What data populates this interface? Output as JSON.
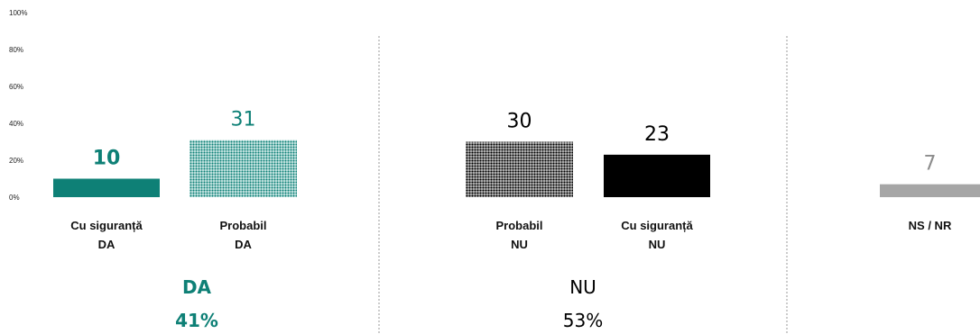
{
  "chart_data": {
    "type": "bar",
    "yticks": [
      "0%",
      "20%",
      "40%",
      "60%",
      "80%",
      "100%"
    ],
    "ylim": [
      0,
      100
    ],
    "grid": false,
    "colors": {
      "da": "#0e8076",
      "nu": "#000000",
      "ns": "#a6a6a6"
    },
    "bars": [
      {
        "category": [
          "Cu siguranță",
          "DA"
        ],
        "value": 10,
        "label": "10",
        "pattern": "solid",
        "color": "#0e8076",
        "label_bold": true
      },
      {
        "category": [
          "Probabil",
          "DA"
        ],
        "value": 31,
        "label": "31",
        "pattern": "dotted",
        "color": "#0e8076",
        "label_bold": false
      },
      {
        "category": [
          "Probabil",
          "NU"
        ],
        "value": 30,
        "label": "30",
        "pattern": "dotted",
        "color": "#000000",
        "label_bold": false
      },
      {
        "category": [
          "Cu siguranță",
          "NU"
        ],
        "value": 23,
        "label": "23",
        "pattern": "solid",
        "color": "#000000",
        "label_bold": false
      },
      {
        "category": [
          "NS / NR"
        ],
        "value": 7,
        "label": "7",
        "pattern": "solid",
        "color": "#a6a6a6",
        "label_bold": false
      }
    ],
    "groups": [
      {
        "name": "DA",
        "total": "41%",
        "color": "#0e8076",
        "bold": true
      },
      {
        "name": "NU",
        "total": "53%",
        "color": "#000000",
        "bold": false
      }
    ]
  }
}
